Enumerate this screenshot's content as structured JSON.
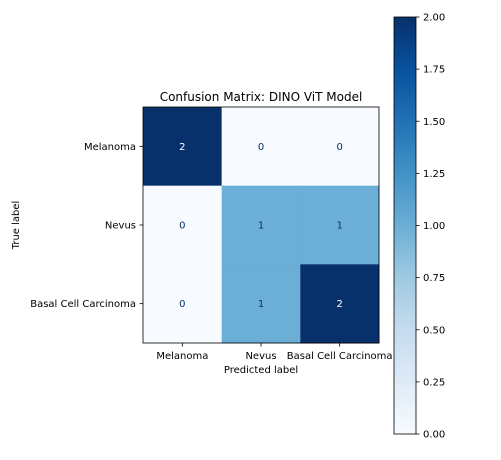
{
  "chart_data": {
    "type": "heatmap",
    "title": "Confusion Matrix: DINO ViT Model",
    "xlabel": "Predicted label",
    "ylabel": "True label",
    "x_categories": [
      "Melanoma",
      "Nevus",
      "Basal Cell Carcinoma"
    ],
    "y_categories": [
      "Melanoma",
      "Nevus",
      "Basal Cell Carcinoma"
    ],
    "values": [
      [
        2,
        0,
        0
      ],
      [
        0,
        1,
        1
      ],
      [
        0,
        1,
        2
      ]
    ],
    "colormap": "Blues",
    "colorscale": [
      "#f7fbff",
      "#deebf7",
      "#c6dbef",
      "#9ecae1",
      "#6baed6",
      "#4292c6",
      "#2171b5",
      "#08519c",
      "#08306b"
    ],
    "zlim": [
      0,
      2
    ],
    "colorbar_ticks": [
      "0.00",
      "0.25",
      "0.50",
      "0.75",
      "1.00",
      "1.25",
      "1.50",
      "1.75",
      "2.00"
    ],
    "grid": false
  }
}
